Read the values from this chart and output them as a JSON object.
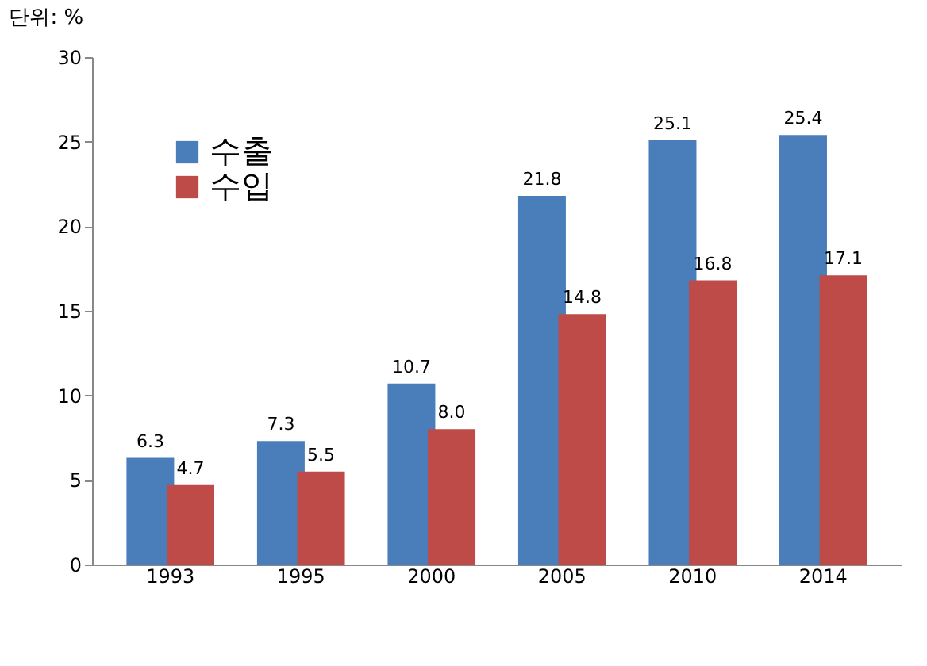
{
  "chart_data": {
    "type": "bar",
    "ylabel": "단위: %",
    "categories": [
      "1993",
      "1995",
      "2000",
      "2005",
      "2010",
      "2014"
    ],
    "series": [
      {
        "name": "수출",
        "color": "#4a7ebb",
        "values": [
          6.3,
          7.3,
          10.7,
          21.8,
          25.1,
          25.4
        ],
        "value_labels": [
          "6.3",
          "7.3",
          "10.7",
          "21.8",
          "25.1",
          "25.4"
        ]
      },
      {
        "name": "수입",
        "color": "#be4b48",
        "values": [
          4.7,
          5.5,
          8.0,
          14.8,
          16.8,
          17.1
        ],
        "value_labels": [
          "4.7",
          "5.5",
          "8.0",
          "14.8",
          "16.8",
          "17.1"
        ]
      }
    ],
    "ylim": [
      0,
      30
    ],
    "yticks": [
      0,
      5,
      10,
      15,
      20,
      25,
      30
    ],
    "grid": false,
    "legend": "top left"
  }
}
